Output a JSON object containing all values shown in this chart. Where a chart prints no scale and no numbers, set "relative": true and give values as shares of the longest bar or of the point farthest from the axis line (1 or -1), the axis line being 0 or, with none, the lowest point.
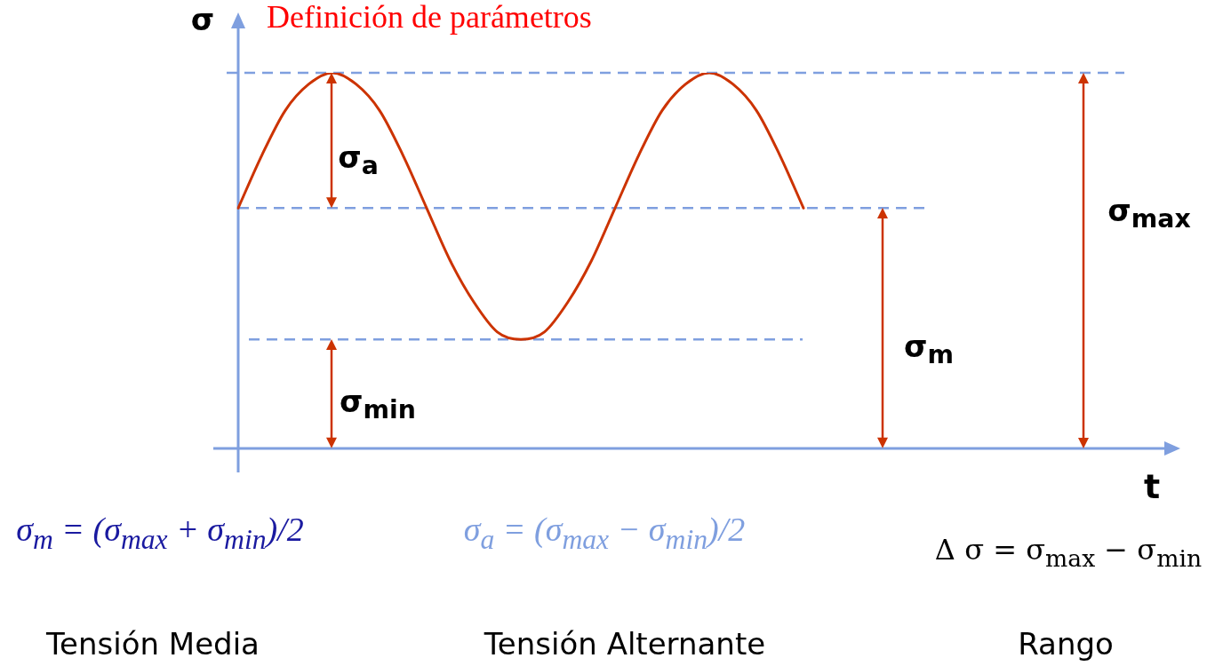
{
  "chart_data": {
    "type": "line",
    "title": "Definición de parámetros",
    "xlabel": "t",
    "ylabel": "σ",
    "relative": true,
    "categories": [
      null,
      null,
      null,
      null,
      null,
      null,
      null,
      null,
      null,
      null,
      null,
      null,
      null,
      null,
      null,
      null,
      null,
      null,
      null,
      null,
      null,
      null,
      null,
      null,
      null,
      null,
      null,
      null,
      null,
      null,
      null,
      null,
      null,
      null,
      null,
      null,
      null,
      null,
      null,
      null,
      null
    ],
    "series": [
      {
        "color": "#cc3300",
        "values": [
          0.64,
          0.78,
          0.9,
          0.97,
          1,
          0.97,
          0.9,
          0.78,
          0.64,
          0.5,
          0.39,
          0.31,
          0.29,
          0.31,
          0.39,
          0.5,
          0.64,
          0.78,
          0.9,
          0.97,
          1,
          0.97,
          0.9,
          0.78,
          0.64,
          null,
          null,
          null,
          null,
          null,
          null,
          null,
          null,
          null,
          null,
          null,
          null,
          null,
          null,
          null,
          null
        ]
      }
    ],
    "ref_lines": [
      {
        "axis": "y",
        "value": 1,
        "color": "#7f9fdf",
        "line_style": "dashed"
      },
      {
        "axis": "y",
        "value": 0.64,
        "color": "#7f9fdf",
        "line_style": "dashed"
      },
      {
        "axis": "y",
        "value": 0.29,
        "color": "#7f9fdf",
        "line_style": "dashed"
      }
    ],
    "annotations": [
      "σ$_{a}$",
      "σ$_{min}$",
      "σ$_{m}$",
      "σ$_{max}$",
      "σ$_{m}$ = (σ$_{max}$ + σ$_{min}$)/2",
      "σ$_{a}$ = (σ$_{max}$ − σ$_{min}$)/2",
      "Δ σ = σ$_{max}$ − σ$_{min}$",
      "Tensión Media",
      "Tensión Alternante",
      "Rango"
    ],
    "marker": "none",
    "line_style": "solid",
    "grid": false,
    "legend": false,
    "tick_labels": false
  }
}
